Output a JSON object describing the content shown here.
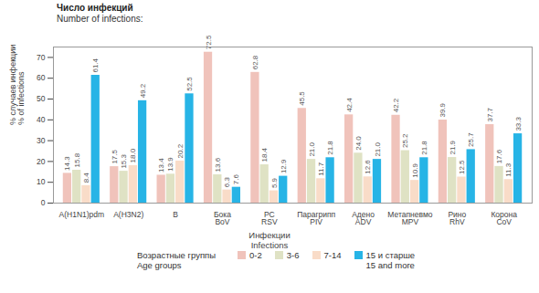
{
  "chart_data": {
    "type": "bar",
    "title": "Число инфекций",
    "subtitle": "Number of infections:",
    "categories": [
      "A(H1N1)pdm",
      "A(H3N2)",
      "B",
      "Бока\nBoV",
      "РС\nRSV",
      "Парагрипп\nPIV",
      "Адено\nADV",
      "Метапневмо\nMPV",
      "Рино\nRhV",
      "Корона\nCoV"
    ],
    "x_label": "Инфекции\nInfections",
    "y_label": "% случаев инфекции\n% of infections",
    "legend_title": "Возрастные группы\nAge groups",
    "series": [
      {
        "name": "0-2",
        "color": "#f0c3bb",
        "values": [
          14.3,
          17.5,
          13.4,
          72.5,
          62.8,
          45.5,
          42.4,
          42.2,
          39.9,
          37.7
        ],
        "value_labels": [
          "14.3",
          "17.5",
          "13.4",
          "72.5",
          "62.8",
          "45.5",
          "42.4",
          "42.2",
          "39.9",
          "37.7"
        ]
      },
      {
        "name": "3-6",
        "color": "#dfe2c4",
        "values": [
          15.8,
          15.3,
          13.9,
          13.6,
          18.4,
          21.0,
          24.0,
          25.2,
          21.9,
          17.6
        ],
        "value_labels": [
          "15.8",
          "15.3",
          "13.9",
          "13.6",
          "18.4",
          "21.0",
          "24.0",
          "25.2",
          "21.9",
          "17.6"
        ]
      },
      {
        "name": "7-14",
        "color": "#f9dcc8",
        "values": [
          8.4,
          18.0,
          20.2,
          6.3,
          5.9,
          11.7,
          12.6,
          10.9,
          12.5,
          11.3
        ],
        "value_labels": [
          "8.4",
          "18.0",
          "20.2",
          "6.3",
          "5.9",
          "11.7",
          "12.6",
          "10.9",
          "12.5",
          "11.3"
        ]
      },
      {
        "name": "15 и старше\n15 and more",
        "color": "#27b4e6",
        "values": [
          61.4,
          49.2,
          52.5,
          7.6,
          12.9,
          21.8,
          21.0,
          21.8,
          25.7,
          33.3
        ],
        "value_labels": [
          "61.4",
          "49.2",
          "52.5",
          "7.6",
          "12.9",
          "21.8",
          "21.0",
          "21.8",
          "25.7",
          "33.3"
        ]
      }
    ],
    "ylim": [
      0,
      75
    ],
    "yticks": [
      0,
      10,
      20,
      30,
      40,
      50,
      60,
      70
    ],
    "grid": false,
    "legend": "bottom",
    "data_labels": true
  }
}
